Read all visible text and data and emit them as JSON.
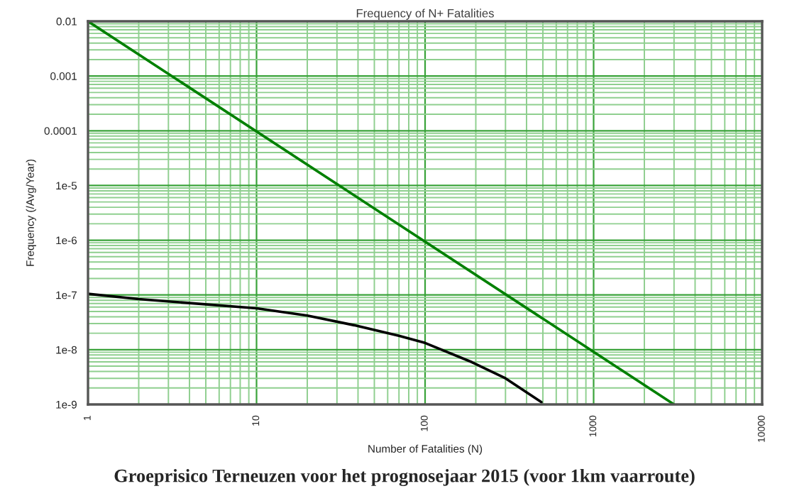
{
  "chart_data": {
    "type": "line",
    "title": "Frequency of N+ Fatalities",
    "xlabel": "Number of Fatalities (N)",
    "ylabel": "Frequency (/Avg/Year)",
    "log": "xy",
    "grid": true,
    "legend": false,
    "marker": "none",
    "line_style": "solid",
    "xlim": [
      1,
      10000
    ],
    "xticks": [
      1,
      {
        "value": 2,
        "label": null
      },
      {
        "value": 3,
        "label": null
      },
      {
        "value": 4,
        "label": null
      },
      {
        "value": 5,
        "label": null
      },
      {
        "value": 6,
        "label": null
      },
      {
        "value": 7,
        "label": null
      },
      {
        "value": 8,
        "label": null
      },
      {
        "value": 9,
        "label": null
      },
      10,
      {
        "value": 20,
        "label": null
      },
      {
        "value": 30,
        "label": null
      },
      {
        "value": 40,
        "label": null
      },
      {
        "value": 50,
        "label": null
      },
      {
        "value": 60,
        "label": null
      },
      {
        "value": 70,
        "label": null
      },
      {
        "value": 80,
        "label": null
      },
      {
        "value": 90,
        "label": null
      },
      100,
      {
        "value": 200,
        "label": null
      },
      {
        "value": 300,
        "label": null
      },
      {
        "value": 400,
        "label": null
      },
      {
        "value": 500,
        "label": null
      },
      {
        "value": 600,
        "label": null
      },
      {
        "value": 700,
        "label": null
      },
      {
        "value": 800,
        "label": null
      },
      {
        "value": 900,
        "label": null
      },
      1000,
      {
        "value": 2000,
        "label": null
      },
      {
        "value": 3000,
        "label": null
      },
      {
        "value": 4000,
        "label": null
      },
      {
        "value": 5000,
        "label": null
      },
      {
        "value": 6000,
        "label": null
      },
      {
        "value": 7000,
        "label": null
      },
      {
        "value": 8000,
        "label": null
      },
      {
        "value": 9000,
        "label": null
      },
      10000
    ],
    "ylim": [
      1e-09,
      0.01
    ],
    "yticks": [
      {
        "value": 1e-09,
        "label": "1e-9"
      },
      {
        "value": 2e-09,
        "label": null
      },
      {
        "value": 3e-09,
        "label": null
      },
      {
        "value": 4e-09,
        "label": null
      },
      {
        "value": 5e-09,
        "label": null
      },
      {
        "value": 6e-09,
        "label": null
      },
      {
        "value": 7e-09,
        "label": null
      },
      {
        "value": 8e-09,
        "label": null
      },
      {
        "value": 9e-09,
        "label": null
      },
      {
        "value": 1e-08,
        "label": "1e-8"
      },
      {
        "value": 2e-08,
        "label": null
      },
      {
        "value": 3e-08,
        "label": null
      },
      {
        "value": 4e-08,
        "label": null
      },
      {
        "value": 5e-08,
        "label": null
      },
      {
        "value": 6e-08,
        "label": null
      },
      {
        "value": 7e-08,
        "label": null
      },
      {
        "value": 8e-08,
        "label": null
      },
      {
        "value": 9e-08,
        "label": null
      },
      {
        "value": 1e-07,
        "label": "1e-7"
      },
      {
        "value": 2e-07,
        "label": null
      },
      {
        "value": 3e-07,
        "label": null
      },
      {
        "value": 4e-07,
        "label": null
      },
      {
        "value": 5e-07,
        "label": null
      },
      {
        "value": 6e-07,
        "label": null
      },
      {
        "value": 7e-07,
        "label": null
      },
      {
        "value": 8e-07,
        "label": null
      },
      {
        "value": 9e-07,
        "label": null
      },
      {
        "value": 1e-06,
        "label": "1e-6"
      },
      {
        "value": 2e-06,
        "label": null
      },
      {
        "value": 3e-06,
        "label": null
      },
      {
        "value": 4e-06,
        "label": null
      },
      {
        "value": 5e-06,
        "label": null
      },
      {
        "value": 6e-06,
        "label": null
      },
      {
        "value": 7e-06,
        "label": null
      },
      {
        "value": 8e-06,
        "label": null
      },
      {
        "value": 9e-06,
        "label": null
      },
      {
        "value": 1e-05,
        "label": "1e-5"
      },
      {
        "value": 2e-05,
        "label": null
      },
      {
        "value": 3e-05,
        "label": null
      },
      {
        "value": 4e-05,
        "label": null
      },
      {
        "value": 5e-05,
        "label": null
      },
      {
        "value": 6e-05,
        "label": null
      },
      {
        "value": 7e-05,
        "label": null
      },
      {
        "value": 8e-05,
        "label": null
      },
      {
        "value": 9e-05,
        "label": null
      },
      {
        "value": 0.0001,
        "label": "0.0001"
      },
      {
        "value": 0.0002,
        "label": null
      },
      {
        "value": 0.0003,
        "label": null
      },
      {
        "value": 0.0004,
        "label": null
      },
      {
        "value": 0.0005,
        "label": null
      },
      {
        "value": 0.0006,
        "label": null
      },
      {
        "value": 0.0007,
        "label": null
      },
      {
        "value": 0.0008,
        "label": null
      },
      {
        "value": 0.0009,
        "label": null
      },
      {
        "value": 0.001,
        "label": "0.001"
      },
      {
        "value": 0.002,
        "label": null
      },
      {
        "value": 0.003,
        "label": null
      },
      {
        "value": 0.004,
        "label": null
      },
      {
        "value": 0.005,
        "label": null
      },
      {
        "value": 0.006,
        "label": null
      },
      {
        "value": 0.007,
        "label": null
      },
      {
        "value": 0.008,
        "label": null
      },
      {
        "value": 0.009,
        "label": null
      },
      {
        "value": 0.01,
        "label": "0.01"
      }
    ],
    "series": [
      {
        "color": "#008000",
        "x": [
          1,
          3000
        ],
        "values": [
          0.01,
          1e-09
        ]
      },
      {
        "color": "#000000",
        "x": [
          1,
          2,
          10,
          20,
          38,
          70,
          100,
          190,
          300,
          490
        ],
        "values": [
          1.05e-07,
          8.4e-08,
          5.7e-08,
          4.2e-08,
          2.8e-08,
          1.8e-08,
          1.33e-08,
          5.9e-09,
          3e-09,
          1.1e-09
        ]
      }
    ],
    "annotations": [
      "Groeprisico Terneuzen voor het prognosejaar 2015 (voor 1km vaarroute)"
    ]
  }
}
